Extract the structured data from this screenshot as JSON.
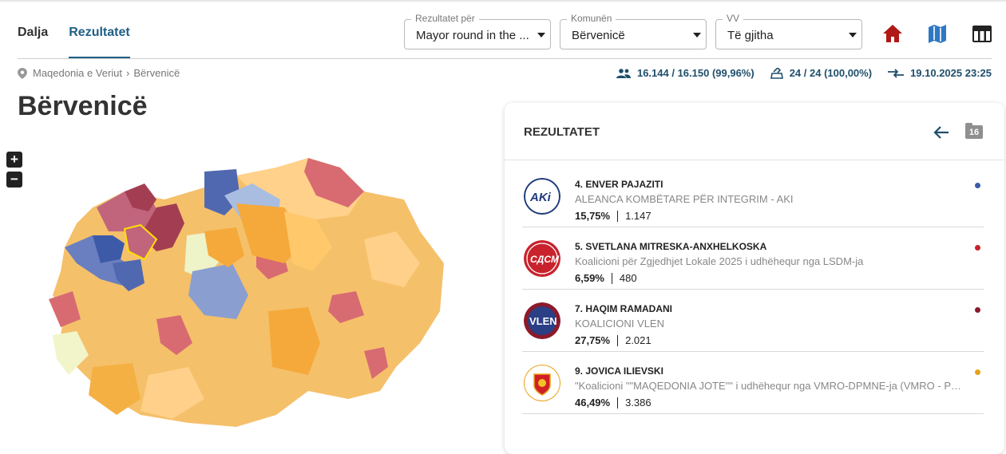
{
  "tabs": [
    {
      "label": "Dalja",
      "active": false
    },
    {
      "label": "Rezultatet",
      "active": true
    }
  ],
  "filters": {
    "results_for": {
      "label": "Rezultatet për",
      "value": "Mayor round in the ..."
    },
    "municipality": {
      "label": "Komunën",
      "value": "Bërvenicë"
    },
    "polling_station": {
      "label": "VV",
      "value": "Të gjitha"
    }
  },
  "icons": {
    "home": "home-icon",
    "map": "map-icon",
    "table": "table-icon"
  },
  "breadcrumb": {
    "root": "Maqedonia e Veriut",
    "current": "Bërvenicë"
  },
  "stats": {
    "turnout": "16.144 / 16.150 (99,96%)",
    "stations": "24 / 24 (100,00%)",
    "updated": "19.10.2025 23:25"
  },
  "title": "Bërvenicë",
  "zoom": {
    "in": "+",
    "out": "−"
  },
  "panel": {
    "title": "REZULTATET",
    "count": "16",
    "candidates": [
      {
        "name": "4. ENVER PAJAZITI",
        "party": "ALEANCA KOMBËTARE PËR INTEGRIM - AKI",
        "pct": "15,75%",
        "votes": "1.147",
        "color": "#3d5aa8",
        "logo": "aki-logo"
      },
      {
        "name": "5. SVETLANA MITRESKA-ANXHELKOSKA",
        "party": "Koalicioni për Zgjedhjet Lokale 2025 i udhëhequr nga LSDM-ja",
        "pct": "6,59%",
        "votes": "480",
        "color": "#c8232c",
        "logo": "sdsm-logo"
      },
      {
        "name": "7. HAQIM RAMADANI",
        "party": "KOALICIONI VLEN",
        "pct": "27,75%",
        "votes": "2.021",
        "color": "#8b1a2b",
        "logo": "vlen-logo"
      },
      {
        "name": "9. JOVICA ILIEVSKI",
        "party": "\"Koalicioni \"\"MAQEDONIA JOTE\"\" i udhëhequr nga VMRO-DPMNE-ja (VMRO - Partia...",
        "pct": "46,49%",
        "votes": "3.386",
        "color": "#e8a21a",
        "logo": "vmro-logo"
      }
    ]
  },
  "colors": {
    "accent": "#1f5f86",
    "home": "#b01818",
    "map": "#2f78c4",
    "table": "#222222"
  }
}
